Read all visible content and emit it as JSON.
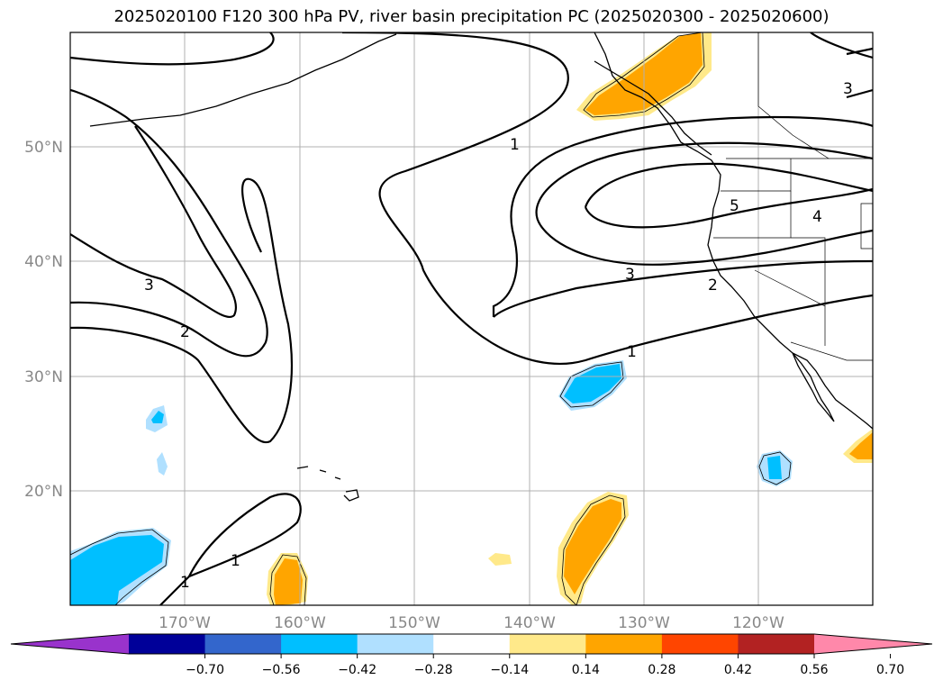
{
  "title": "2025020100 F120 300 hPa PV, river basin precipitation PC (2025020300 - 2025020600)",
  "chart_data": {
    "type": "heatmap",
    "title": "2025020100 F120 300 hPa PV, river basin precipitation PC (2025020300 - 2025020600)",
    "map_extent": {
      "lon": [
        -180,
        -110
      ],
      "lat": [
        10,
        60
      ]
    },
    "x_ticks": [
      "170°W",
      "160°W",
      "150°W",
      "140°W",
      "130°W",
      "120°W"
    ],
    "y_ticks": [
      "50°N",
      "40°N",
      "30°N",
      "20°N"
    ],
    "grid": true,
    "contour_variable": "300 hPa PV",
    "contour_labels": [
      "1",
      "1",
      "1",
      "1",
      "2",
      "2",
      "3",
      "3",
      "3",
      "4",
      "5"
    ],
    "colorbar": {
      "extend": "both",
      "ticks": [
        "−0.70",
        "−0.56",
        "−0.42",
        "−0.28",
        "−0.14",
        "0.14",
        "0.28",
        "0.42",
        "0.56",
        "0.70"
      ],
      "colors": [
        "#9933cc",
        "#000099",
        "#3366cc",
        "#00bfff",
        "#b0e0ff",
        "#ffffff",
        "#ffe98a",
        "#ffa500",
        "#ff4500",
        "#b22222",
        "#ff88aa"
      ]
    },
    "precip_regions": [
      {
        "location": "Pacific Northwest / British Columbia coast",
        "sign": "positive",
        "peak": 0.42
      },
      {
        "location": "Southern Baja / Mexico coast",
        "sign": "positive",
        "peak": 0.42
      },
      {
        "location": "East of Hawaii near 15-20N 135W",
        "sign": "positive",
        "peak": 0.42
      },
      {
        "location": "South of Hawaii near 12N 160W",
        "sign": "positive",
        "peak": 0.42
      },
      {
        "location": "Near 13N 143W",
        "sign": "positive",
        "peak": 0.28
      },
      {
        "location": "Near 30N 133W",
        "sign": "negative",
        "peak": -0.42
      },
      {
        "location": "Near 21N 118W",
        "sign": "negative",
        "peak": -0.42
      },
      {
        "location": "Southwest corner near 12N 175W",
        "sign": "negative",
        "peak": -0.42
      },
      {
        "location": "Near 25N 171W",
        "sign": "negative",
        "peak": -0.28
      }
    ]
  }
}
